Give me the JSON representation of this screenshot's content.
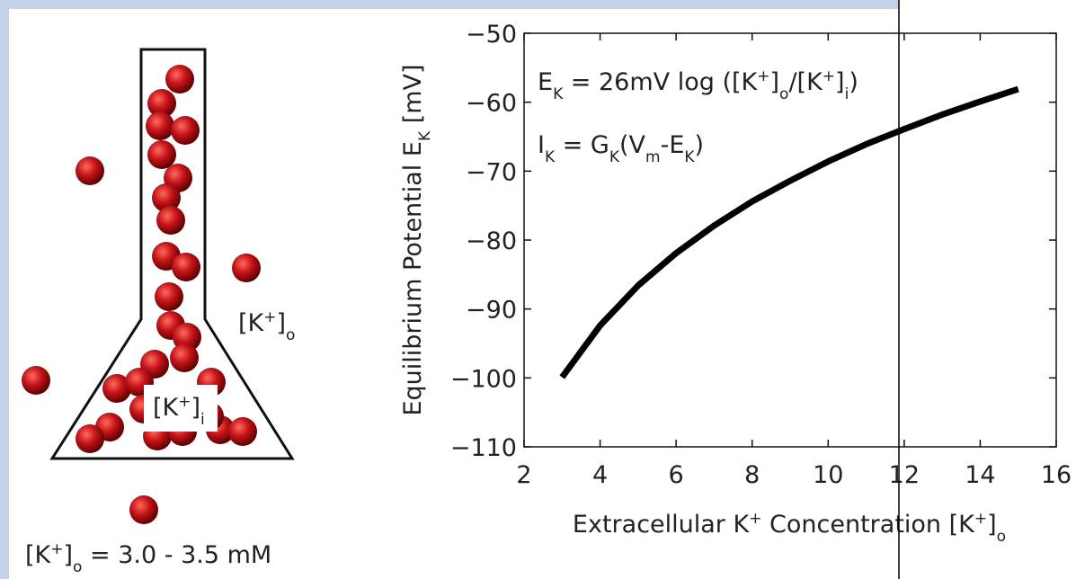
{
  "chart_data": {
    "type": "line",
    "ylabel": [
      "Equilibrium Potential E",
      "K",
      " [mV]"
    ],
    "xlabel": [
      "Extracellular K",
      "+",
      " Concentration [K",
      "+",
      "]",
      "o"
    ],
    "annotations": [
      [
        "E",
        "K",
        " = 26mV log ([K",
        "+",
        "]",
        "o",
        "/[K",
        "+",
        "]",
        "i",
        ")"
      ],
      [
        "I",
        "K",
        " = G",
        "K",
        "(V",
        "m",
        "-E",
        "K",
        ")"
      ]
    ],
    "x": [
      3,
      4,
      5,
      6,
      7,
      8,
      9,
      10,
      11,
      12,
      13,
      14,
      15
    ],
    "series": [
      {
        "color": "#000000",
        "values": [
          -99.9,
          -92.4,
          -86.6,
          -81.9,
          -77.9,
          -74.4,
          -71.4,
          -68.6,
          -66.1,
          -63.9,
          -61.8,
          -59.9,
          -58.1
        ]
      }
    ],
    "xlim": [
      2,
      16
    ],
    "xticks": [
      2,
      4,
      6,
      8,
      10,
      12,
      14,
      16
    ],
    "ylim": [
      -110,
      -50
    ],
    "yticks": [
      {
        "value": -110,
        "label": "−110"
      },
      {
        "value": -100,
        "label": "−100"
      },
      {
        "value": -90,
        "label": "−90"
      },
      {
        "value": -80,
        "label": "−80"
      },
      {
        "value": -70,
        "label": "−70"
      },
      {
        "value": -60,
        "label": "−60"
      },
      {
        "value": -50,
        "label": "−50"
      }
    ]
  },
  "diagram": {
    "outside_label": [
      "[K",
      "+",
      "]",
      "o"
    ],
    "inside_label": [
      "[K",
      "+",
      "]",
      "i"
    ],
    "concentration": [
      "[K",
      "+",
      "]",
      "o",
      " = 3.0 - 3.5 mM"
    ]
  }
}
